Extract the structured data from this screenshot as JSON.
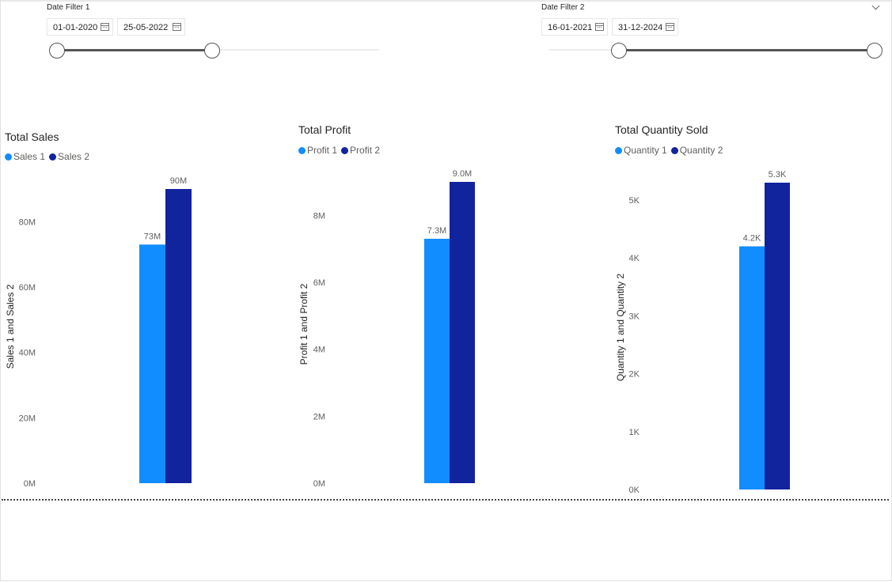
{
  "slicers": [
    {
      "title": "Date Filter 1",
      "start": "01-01-2020",
      "end": "25-05-2022",
      "icon": "calendar-icon"
    },
    {
      "title": "Date Filter 2",
      "start": "16-01-2021",
      "end": "31-12-2024",
      "icon": "calendar-icon"
    }
  ],
  "colors": {
    "series1": "#118DFF",
    "series2": "#12239E",
    "axis_text": "#605e5c",
    "slider": "#555555"
  },
  "chart_data": [
    {
      "type": "bar",
      "title": "Total Sales",
      "ylabel": "Sales 1 and Sales 2",
      "ylim": [
        0,
        90000000
      ],
      "yticks": [
        0,
        20000000,
        40000000,
        60000000,
        80000000
      ],
      "ytick_labels": [
        "0M",
        "20M",
        "40M",
        "60M",
        "80M"
      ],
      "series": [
        {
          "name": "Sales 1",
          "values": [
            73000000
          ],
          "data_label": "73M"
        },
        {
          "name": "Sales 2",
          "values": [
            90000000
          ],
          "data_label": "90M"
        }
      ],
      "grid": false,
      "legend_position": "top-left"
    },
    {
      "type": "bar",
      "title": "Total Profit",
      "ylabel": "Profit 1 and Profit 2",
      "ylim": [
        0,
        9000000
      ],
      "yticks": [
        0,
        2000000,
        4000000,
        6000000,
        8000000
      ],
      "ytick_labels": [
        "0M",
        "2M",
        "4M",
        "6M",
        "8M"
      ],
      "series": [
        {
          "name": "Profit 1",
          "values": [
            7300000
          ],
          "data_label": "7.3M"
        },
        {
          "name": "Profit 2",
          "values": [
            9000000
          ],
          "data_label": "9.0M"
        }
      ],
      "grid": false,
      "legend_position": "top-left"
    },
    {
      "type": "bar",
      "title": "Total Quantity Sold",
      "ylabel": "Quantity 1 and Quantity 2",
      "ylim": [
        0,
        5300
      ],
      "yticks": [
        0,
        1000,
        2000,
        3000,
        4000,
        5000
      ],
      "ytick_labels": [
        "0K",
        "1K",
        "2K",
        "3K",
        "4K",
        "5K"
      ],
      "series": [
        {
          "name": "Quantity 1",
          "values": [
            4200
          ],
          "data_label": "4.2K"
        },
        {
          "name": "Quantity 2",
          "values": [
            5300
          ],
          "data_label": "5.3K"
        }
      ],
      "grid": false,
      "legend_position": "top-left"
    }
  ]
}
